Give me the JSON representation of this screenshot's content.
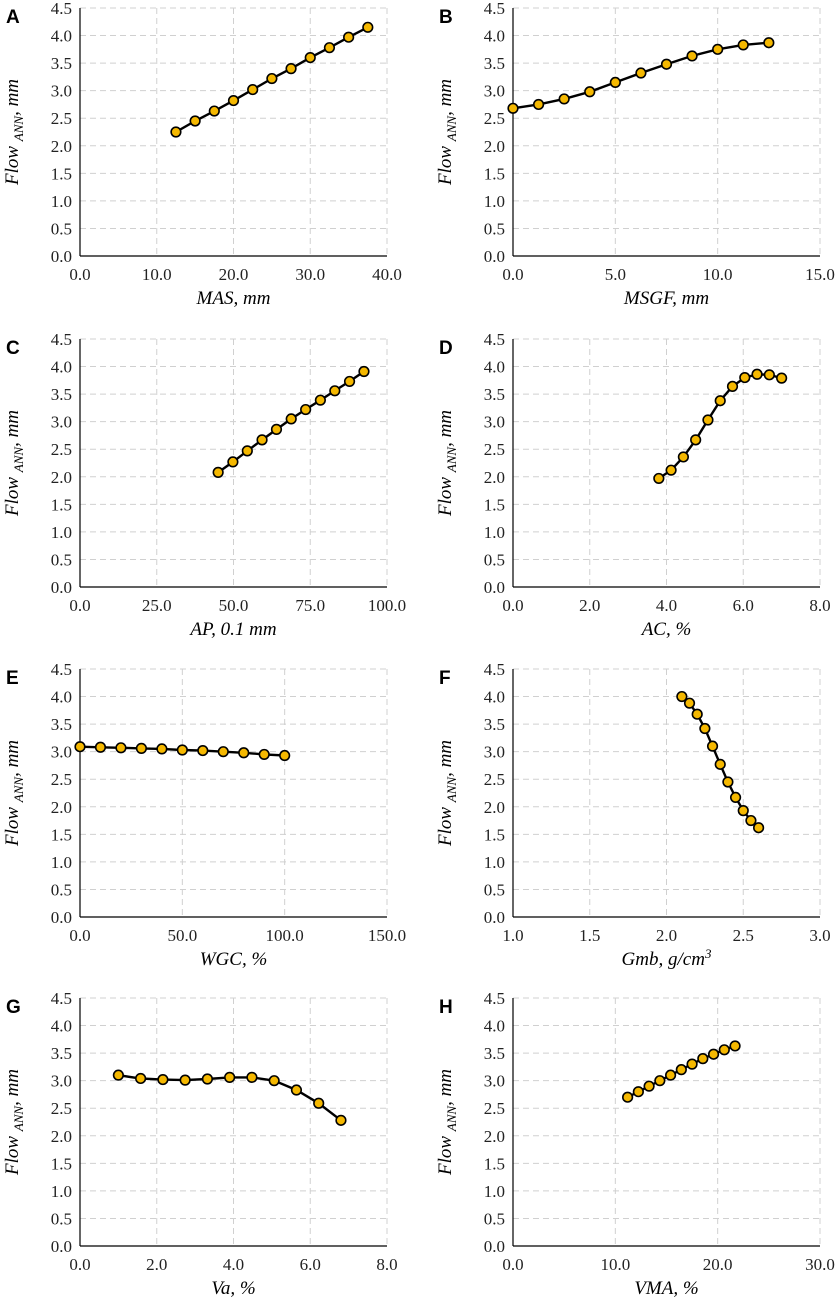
{
  "figure": {
    "y_label_main": "Flow",
    "y_label_sub": "ANN",
    "y_label_unit": ", mm"
  },
  "chart_data": [
    {
      "type": "line",
      "panel": "A",
      "title": "",
      "xlabel": "MAS, mm",
      "ylabel": "Flow ANN, mm",
      "xlim": [
        0,
        40
      ],
      "xticks": [
        "0.0",
        "10.0",
        "20.0",
        "30.0",
        "40.0"
      ],
      "ylim": [
        0,
        4.5
      ],
      "yticks": [
        "0.0",
        "0.5",
        "1.0",
        "1.5",
        "2.0",
        "2.5",
        "3.0",
        "3.5",
        "4.0",
        "4.5"
      ],
      "grid": true,
      "x": [
        12.5,
        15,
        17.5,
        20,
        22.5,
        25,
        27.5,
        30,
        32.5,
        35,
        37.5
      ],
      "y": [
        2.25,
        2.45,
        2.63,
        2.82,
        3.02,
        3.22,
        3.4,
        3.6,
        3.78,
        3.97,
        4.15
      ]
    },
    {
      "type": "line",
      "panel": "B",
      "title": "",
      "xlabel": "MSGF, mm",
      "ylabel": "Flow ANN, mm",
      "xlim": [
        0,
        15
      ],
      "xticks": [
        "0.0",
        "5.0",
        "10.0",
        "15.0"
      ],
      "ylim": [
        0,
        4.5
      ],
      "yticks": [
        "0.0",
        "0.5",
        "1.0",
        "1.5",
        "2.0",
        "2.5",
        "3.0",
        "3.5",
        "4.0",
        "4.5"
      ],
      "grid": true,
      "x": [
        0,
        1.25,
        2.5,
        3.75,
        5,
        6.25,
        7.5,
        8.75,
        10,
        11.25,
        12.5
      ],
      "y": [
        2.68,
        2.75,
        2.85,
        2.98,
        3.15,
        3.32,
        3.48,
        3.63,
        3.75,
        3.83,
        3.87
      ]
    },
    {
      "type": "line",
      "panel": "C",
      "title": "",
      "xlabel": "AP, 0.1 mm",
      "ylabel": "Flow ANN, mm",
      "xlim": [
        0,
        100
      ],
      "xticks": [
        "0.0",
        "25.0",
        "50.0",
        "75.0",
        "100.0"
      ],
      "ylim": [
        0,
        4.5
      ],
      "yticks": [
        "0.0",
        "0.5",
        "1.0",
        "1.5",
        "2.0",
        "2.5",
        "3.0",
        "3.5",
        "4.0",
        "4.5"
      ],
      "grid": true,
      "x": [
        45,
        49.8,
        54.5,
        59.3,
        64,
        68.8,
        73.5,
        78.3,
        83,
        87.8,
        92.5
      ],
      "y": [
        2.08,
        2.27,
        2.47,
        2.67,
        2.86,
        3.05,
        3.22,
        3.39,
        3.56,
        3.73,
        3.91
      ]
    },
    {
      "type": "line",
      "panel": "D",
      "title": "",
      "xlabel": "AC, %",
      "ylabel": "Flow ANN, mm",
      "xlim": [
        0,
        8
      ],
      "xticks": [
        "0.0",
        "2.0",
        "4.0",
        "6.0",
        "8.0"
      ],
      "ylim": [
        0,
        4.5
      ],
      "yticks": [
        "0.0",
        "0.5",
        "1.0",
        "1.5",
        "2.0",
        "2.5",
        "3.0",
        "3.5",
        "4.0",
        "4.5"
      ],
      "grid": true,
      "x": [
        3.8,
        4.12,
        4.44,
        4.76,
        5.08,
        5.4,
        5.72,
        6.04,
        6.36,
        6.68,
        7.0
      ],
      "y": [
        1.97,
        2.12,
        2.36,
        2.67,
        3.03,
        3.38,
        3.64,
        3.8,
        3.86,
        3.85,
        3.79
      ]
    },
    {
      "type": "line",
      "panel": "E",
      "title": "",
      "xlabel": "WGC, %",
      "ylabel": "Flow ANN, mm",
      "xlim": [
        0,
        150
      ],
      "xticks": [
        "0.0",
        "50.0",
        "100.0",
        "150.0"
      ],
      "ylim": [
        0,
        4.5
      ],
      "yticks": [
        "0.0",
        "0.5",
        "1.0",
        "1.5",
        "2.0",
        "2.5",
        "3.0",
        "3.5",
        "4.0",
        "4.5"
      ],
      "grid": true,
      "x": [
        0,
        10,
        20,
        30,
        40,
        50,
        60,
        70,
        80,
        90,
        100
      ],
      "y": [
        3.09,
        3.08,
        3.07,
        3.06,
        3.05,
        3.03,
        3.02,
        3.0,
        2.98,
        2.95,
        2.93
      ]
    },
    {
      "type": "line",
      "panel": "F",
      "title": "",
      "xlabel": "Gmb, g/cm",
      "xlabel_sup": "3",
      "ylabel": "Flow ANN, mm",
      "xlim": [
        1,
        3
      ],
      "xticks": [
        "1.0",
        "1.5",
        "2.0",
        "2.5",
        "3.0"
      ],
      "ylim": [
        0,
        4.5
      ],
      "yticks": [
        "0.0",
        "0.5",
        "1.0",
        "1.5",
        "2.0",
        "2.5",
        "3.0",
        "3.5",
        "4.0",
        "4.5"
      ],
      "grid": true,
      "x": [
        2.1,
        2.15,
        2.2,
        2.25,
        2.3,
        2.35,
        2.4,
        2.45,
        2.5,
        2.55,
        2.6
      ],
      "y": [
        4.0,
        3.88,
        3.68,
        3.42,
        3.1,
        2.77,
        2.45,
        2.17,
        1.93,
        1.75,
        1.62
      ]
    },
    {
      "type": "line",
      "panel": "G",
      "title": "",
      "xlabel": "Va, %",
      "ylabel": "Flow ANN, mm",
      "xlim": [
        0,
        8
      ],
      "xticks": [
        "0.0",
        "2.0",
        "4.0",
        "6.0",
        "8.0"
      ],
      "ylim": [
        0,
        4.5
      ],
      "yticks": [
        "0.0",
        "0.5",
        "1.0",
        "1.5",
        "2.0",
        "2.5",
        "3.0",
        "3.5",
        "4.0",
        "4.5"
      ],
      "grid": true,
      "x": [
        1.0,
        1.58,
        2.16,
        2.74,
        3.32,
        3.9,
        4.48,
        5.06,
        5.64,
        6.22,
        6.8
      ],
      "y": [
        3.1,
        3.04,
        3.02,
        3.01,
        3.03,
        3.06,
        3.06,
        3.0,
        2.83,
        2.59,
        2.28
      ]
    },
    {
      "type": "line",
      "panel": "H",
      "title": "",
      "xlabel": "VMA, %",
      "ylabel": "Flow ANN, mm",
      "xlim": [
        0,
        30
      ],
      "xticks": [
        "0.0",
        "10.0",
        "20.0",
        "30.0"
      ],
      "ylim": [
        0,
        4.5
      ],
      "yticks": [
        "0.0",
        "0.5",
        "1.0",
        "1.5",
        "2.0",
        "2.5",
        "3.0",
        "3.5",
        "4.0",
        "4.5"
      ],
      "grid": true,
      "x": [
        11.2,
        12.25,
        13.3,
        14.35,
        15.4,
        16.45,
        17.5,
        18.55,
        19.6,
        20.65,
        21.7
      ],
      "y": [
        2.7,
        2.8,
        2.9,
        3.0,
        3.1,
        3.2,
        3.3,
        3.4,
        3.48,
        3.56,
        3.63
      ]
    }
  ]
}
